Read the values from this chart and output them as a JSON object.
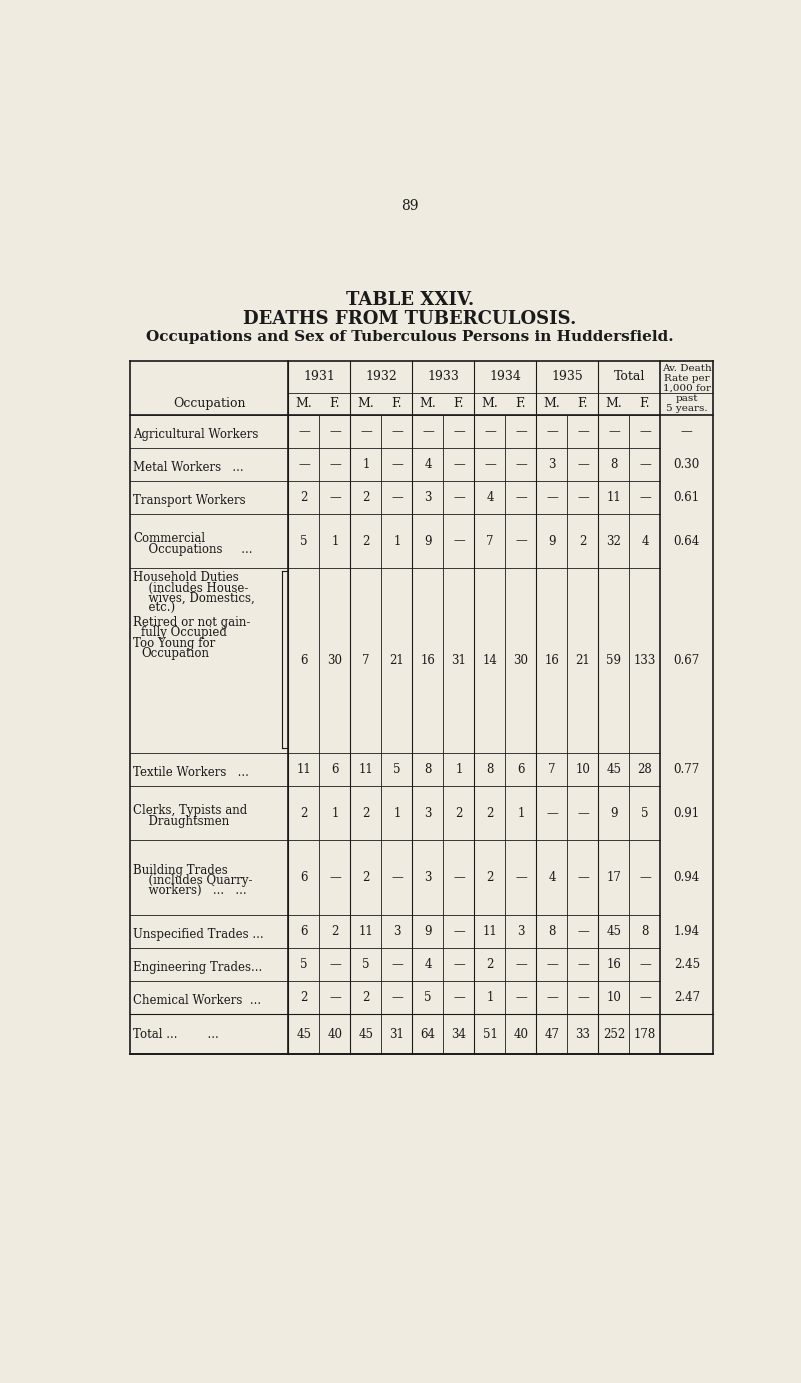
{
  "page_number": "89",
  "title1": "TABLE XXIV.",
  "title2": "DEATHS FROM TUBERCULOSIS.",
  "title3": "Occupations and Sex of Tuberculous Persons in Huddersfield.",
  "bg_color": "#f0ebe0",
  "years_headers": [
    "1931",
    "1932",
    "1933",
    "1934",
    "1935",
    "Total"
  ],
  "mf_headers": [
    "M.",
    "F.",
    "M.",
    "F.",
    "M.",
    "F.",
    "M.",
    "F.",
    "M.",
    "F.",
    "M.",
    "F."
  ],
  "rate_header": [
    "Av. Death",
    "Rate per",
    "1,000 for",
    "past",
    "5 years."
  ],
  "rows": [
    {
      "label": [
        "Agricultural Workers"
      ],
      "indent": [
        0
      ],
      "data": [
        "—",
        "—",
        "—",
        "—",
        "—",
        "—",
        "—",
        "—",
        "—",
        "—",
        "—",
        "—"
      ],
      "rate": "—",
      "nlines": 1
    },
    {
      "label": [
        "Metal Workers   ..."
      ],
      "indent": [
        0
      ],
      "data": [
        "—",
        "—",
        "1",
        "—",
        "4",
        "—",
        "—",
        "—",
        "3",
        "—",
        "8",
        "—"
      ],
      "rate": "0.30",
      "nlines": 1
    },
    {
      "label": [
        "Transport Workers"
      ],
      "indent": [
        0
      ],
      "data": [
        "2",
        "—",
        "2",
        "—",
        "3",
        "—",
        "4",
        "—",
        "—",
        "—",
        "11",
        "—"
      ],
      "rate": "0.61",
      "nlines": 1
    },
    {
      "label": [
        "Commercial",
        "  Occupations     ..."
      ],
      "indent": [
        0,
        1
      ],
      "data": [
        "5",
        "1",
        "2",
        "1",
        "9",
        "—",
        "7",
        "—",
        "9",
        "2",
        "32",
        "4"
      ],
      "rate": "0.64",
      "nlines": 2
    },
    {
      "label": [
        "Household Duties",
        "  (includes House-",
        "  wives, Domestics,",
        "  etc.)"
      ],
      "indent": [
        0,
        1,
        1,
        1
      ],
      "data": [
        "6",
        "30",
        "7",
        "21",
        "16",
        "31",
        "14",
        "30",
        "16",
        "21",
        "59",
        "133"
      ],
      "rate": "0.67",
      "nlines": 4,
      "bracket": true,
      "bracket_lines": [
        "Retired or not gain-",
        "  fully Occupied",
        "Too Young for",
        "  Occupation"
      ]
    },
    {
      "label": [
        "Textile Workers   ..."
      ],
      "indent": [
        0
      ],
      "data": [
        "11",
        "6",
        "11",
        "5",
        "8",
        "1",
        "8",
        "6",
        "7",
        "10",
        "45",
        "28"
      ],
      "rate": "0.77",
      "nlines": 1
    },
    {
      "label": [
        "Clerks, Typists and",
        "  Draughtsmen"
      ],
      "indent": [
        0,
        1
      ],
      "data": [
        "2",
        "1",
        "2",
        "1",
        "3",
        "2",
        "2",
        "1",
        "—",
        "—",
        "9",
        "5"
      ],
      "rate": "0.91",
      "nlines": 2
    },
    {
      "label": [
        "Building Trades",
        "  (includes Quarry-",
        "  workers)   ...   ..."
      ],
      "indent": [
        0,
        1,
        1
      ],
      "data": [
        "6",
        "—",
        "2",
        "—",
        "3",
        "—",
        "2",
        "—",
        "4",
        "—",
        "17",
        "—"
      ],
      "rate": "0.94",
      "nlines": 3
    },
    {
      "label": [
        "Unspecified Trades ..."
      ],
      "indent": [
        0
      ],
      "data": [
        "6",
        "2",
        "11",
        "3",
        "9",
        "—",
        "11",
        "3",
        "8",
        "—",
        "45",
        "8"
      ],
      "rate": "1.94",
      "nlines": 1
    },
    {
      "label": [
        "Engineering Trades..."
      ],
      "indent": [
        0
      ],
      "data": [
        "5",
        "—",
        "5",
        "—",
        "4",
        "—",
        "2",
        "—",
        "—",
        "—",
        "16",
        "—"
      ],
      "rate": "2.45",
      "nlines": 1
    },
    {
      "label": [
        "Chemical Workers  ..."
      ],
      "indent": [
        0
      ],
      "data": [
        "2",
        "—",
        "2",
        "—",
        "5",
        "—",
        "1",
        "—",
        "—",
        "—",
        "10",
        "—"
      ],
      "rate": "2.47",
      "nlines": 1
    }
  ],
  "total_label": "Total ...        ...",
  "total_data": [
    "45",
    "40",
    "45",
    "31",
    "64",
    "34",
    "51",
    "40",
    "47",
    "33",
    "252",
    "178"
  ]
}
